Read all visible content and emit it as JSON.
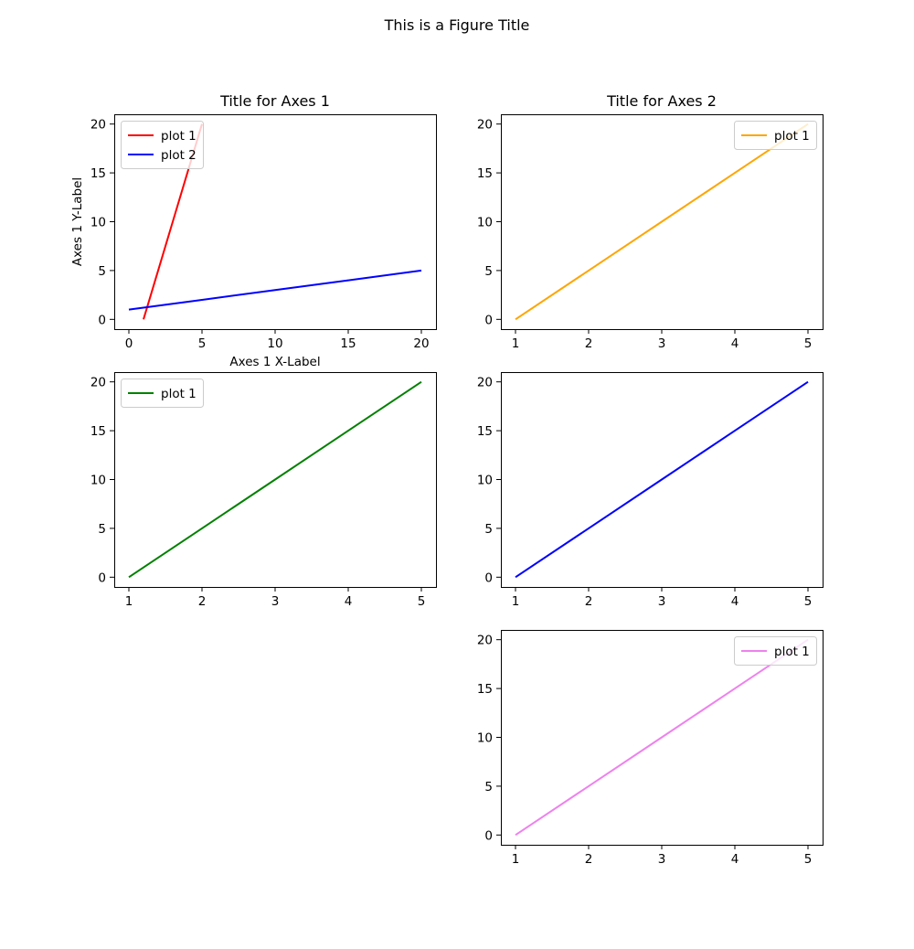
{
  "figure_title": "This is a Figure Title",
  "chart_data": [
    {
      "type": "line",
      "title": "Title for Axes 1",
      "xlabel": "Axes 1  X-Label",
      "ylabel": "Axes 1 Y-Label",
      "xlim": [
        -1,
        21
      ],
      "ylim": [
        -1,
        21
      ],
      "xticks": [
        0,
        5,
        10,
        15,
        20
      ],
      "yticks": [
        0,
        5,
        10,
        15,
        20
      ],
      "legend": "upper-left",
      "series": [
        {
          "name": "plot 1",
          "color": "#ff0000",
          "x": [
            1,
            2,
            3,
            4,
            5
          ],
          "y": [
            0,
            5,
            10,
            15,
            20
          ]
        },
        {
          "name": "plot 2",
          "color": "#0000ff",
          "x": [
            0,
            5,
            10,
            15,
            20
          ],
          "y": [
            1,
            2,
            3,
            4,
            5
          ]
        }
      ]
    },
    {
      "type": "line",
      "title": "Title for Axes 2",
      "xlabel": "",
      "ylabel": "",
      "xlim": [
        0.8,
        5.2
      ],
      "ylim": [
        -1,
        21
      ],
      "xticks": [
        1,
        2,
        3,
        4,
        5
      ],
      "yticks": [
        0,
        5,
        10,
        15,
        20
      ],
      "legend": "upper-right",
      "series": [
        {
          "name": "plot 1",
          "color": "#ffa500",
          "x": [
            1,
            2,
            3,
            4,
            5
          ],
          "y": [
            0,
            5,
            10,
            15,
            20
          ]
        }
      ]
    },
    {
      "type": "line",
      "title": "",
      "xlabel": "",
      "ylabel": "",
      "xlim": [
        0.8,
        5.2
      ],
      "ylim": [
        -1,
        21
      ],
      "xticks": [
        1,
        2,
        3,
        4,
        5
      ],
      "yticks": [
        0,
        5,
        10,
        15,
        20
      ],
      "legend": "upper-left",
      "series": [
        {
          "name": "plot 1",
          "color": "#008000",
          "x": [
            1,
            2,
            3,
            4,
            5
          ],
          "y": [
            0,
            5,
            10,
            15,
            20
          ]
        }
      ]
    },
    {
      "type": "line",
      "title": "",
      "xlabel": "",
      "ylabel": "",
      "xlim": [
        0.8,
        5.2
      ],
      "ylim": [
        -1,
        21
      ],
      "xticks": [
        1,
        2,
        3,
        4,
        5
      ],
      "yticks": [
        0,
        5,
        10,
        15,
        20
      ],
      "legend": "none",
      "series": [
        {
          "name": "",
          "color": "#0000ff",
          "x": [
            1,
            2,
            3,
            4,
            5
          ],
          "y": [
            0,
            5,
            10,
            15,
            20
          ]
        }
      ]
    },
    {
      "type": "line",
      "title": "",
      "xlabel": "",
      "ylabel": "",
      "xlim": [
        0.8,
        5.2
      ],
      "ylim": [
        -1,
        21
      ],
      "xticks": [
        1,
        2,
        3,
        4,
        5
      ],
      "yticks": [
        0,
        5,
        10,
        15,
        20
      ],
      "legend": "upper-right",
      "series": [
        {
          "name": "plot 1",
          "color": "#ee82ee",
          "x": [
            1,
            2,
            3,
            4,
            5
          ],
          "y": [
            0,
            5,
            10,
            15,
            20
          ]
        }
      ]
    }
  ]
}
